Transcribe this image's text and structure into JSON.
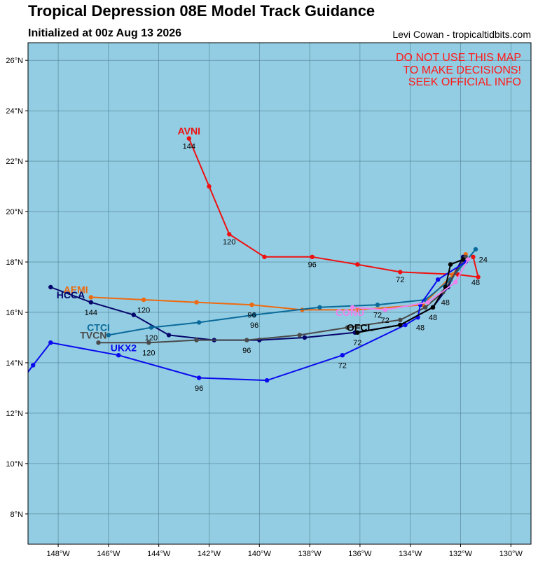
{
  "header": {
    "title": "Tropical Depression 08E Model Track Guidance",
    "subtitle": "Initialized at 00z Aug 13 2026",
    "credit": "Levi Cowan - tropicaltidbits.com"
  },
  "warning": [
    "DO NOT USE THIS MAP",
    "TO MAKE DECISIONS!",
    "SEEK OFFICIAL INFO"
  ],
  "colors": {
    "ocean": "#93cde3",
    "grid": "#4f7f91",
    "warning": "#ff1a1a"
  },
  "map": {
    "lon_range": [
      -149.2,
      -129.2
    ],
    "lat_range": [
      6.8,
      26.7
    ],
    "lon_ticks": [
      {
        "v": -148,
        "label": "148°W"
      },
      {
        "v": -146,
        "label": "146°W"
      },
      {
        "v": -144,
        "label": "144°W"
      },
      {
        "v": -142,
        "label": "142°W"
      },
      {
        "v": -140,
        "label": "140°W"
      },
      {
        "v": -138,
        "label": "138°W"
      },
      {
        "v": -136,
        "label": "136°W"
      },
      {
        "v": -134,
        "label": "134°W"
      },
      {
        "v": -132,
        "label": "132°W"
      },
      {
        "v": -130,
        "label": "130°W"
      }
    ],
    "lat_ticks": [
      {
        "v": 8,
        "label": "8°N"
      },
      {
        "v": 10,
        "label": "10°N"
      },
      {
        "v": 12,
        "label": "12°N"
      },
      {
        "v": 14,
        "label": "14°N"
      },
      {
        "v": 16,
        "label": "16°N"
      },
      {
        "v": 18,
        "label": "18°N"
      },
      {
        "v": 20,
        "label": "20°N"
      },
      {
        "v": 22,
        "label": "22°N"
      },
      {
        "v": 24,
        "label": "24°N"
      },
      {
        "v": 26,
        "label": "26°N"
      }
    ]
  },
  "chart_data": {
    "type": "scatter",
    "xlabel": "",
    "ylabel": "",
    "series": [
      {
        "name": "AVNI",
        "color": "#ee1111",
        "points": [
          [
            -131.5,
            18.2
          ],
          [
            -131.3,
            17.4
          ],
          [
            -132.1,
            17.5
          ],
          [
            -134.4,
            17.6
          ],
          [
            -136.1,
            17.9
          ],
          [
            -137.9,
            18.2
          ],
          [
            -139.8,
            18.2
          ],
          [
            -141.2,
            19.1
          ],
          [
            -142.0,
            21.0
          ],
          [
            -142.8,
            22.9
          ]
        ],
        "hour_labels": [
          {
            "h": "24",
            "lon": -131.1,
            "lat": 18.1
          },
          {
            "h": "48",
            "lon": -131.4,
            "lat": 17.2
          },
          {
            "h": "72",
            "lon": -134.4,
            "lat": 17.3
          },
          {
            "h": "96",
            "lon": -137.9,
            "lat": 17.9
          },
          {
            "h": "120",
            "lon": -141.2,
            "lat": 18.8
          },
          {
            "h": "144",
            "lon": -142.8,
            "lat": 22.6
          }
        ],
        "label": {
          "lon": -142.8,
          "lat": 23.2
        }
      },
      {
        "name": "AEMI",
        "color": "#ee6a10",
        "points": [
          [
            -131.8,
            18.3
          ],
          [
            -132.3,
            17.5
          ],
          [
            -133.5,
            16.3
          ],
          [
            -136.1,
            16.1
          ],
          [
            -138.3,
            16.1
          ],
          [
            -140.3,
            16.3
          ],
          [
            -142.5,
            16.4
          ],
          [
            -144.6,
            16.5
          ],
          [
            -146.7,
            16.6
          ]
        ],
        "hour_labels": [
          {
            "h": "120",
            "lon": -144.6,
            "lat": 16.1
          },
          {
            "h": "96",
            "lon": -140.3,
            "lat": 15.9
          }
        ],
        "label": {
          "lon": -147.3,
          "lat": 16.9
        }
      },
      {
        "name": "HCCA",
        "color": "#05056b",
        "points": [
          [
            -131.9,
            18.2
          ],
          [
            -132.5,
            17.0
          ],
          [
            -133.1,
            16.2
          ],
          [
            -134.4,
            15.5
          ],
          [
            -136.2,
            15.2
          ],
          [
            -138.2,
            15.0
          ],
          [
            -140.0,
            14.9
          ],
          [
            -141.8,
            14.9
          ],
          [
            -143.6,
            15.1
          ],
          [
            -145.0,
            15.9
          ],
          [
            -146.7,
            16.4
          ],
          [
            -148.3,
            17.0
          ]
        ],
        "hour_labels": [
          {
            "h": "144",
            "lon": -146.7,
            "lat": 16.0
          }
        ],
        "label": {
          "lon": -147.5,
          "lat": 16.7
        }
      },
      {
        "name": "CTCI",
        "color": "#0a6a9a",
        "points": [
          [
            -131.4,
            18.5
          ],
          [
            -132.4,
            17.3
          ],
          [
            -133.4,
            16.5
          ],
          [
            -135.3,
            16.3
          ],
          [
            -137.6,
            16.2
          ],
          [
            -140.2,
            15.9
          ],
          [
            -142.4,
            15.6
          ],
          [
            -144.3,
            15.4
          ],
          [
            -146.0,
            15.1
          ]
        ],
        "hour_labels": [
          {
            "h": "120",
            "lon": -144.3,
            "lat": 15.0
          },
          {
            "h": "96",
            "lon": -140.2,
            "lat": 15.5
          },
          {
            "h": "72",
            "lon": -135.3,
            "lat": 15.9
          }
        ],
        "label": {
          "lon": -146.4,
          "lat": 15.4
        }
      },
      {
        "name": "TVCN",
        "color": "#4a4a4a",
        "points": [
          [
            -131.8,
            18.2
          ],
          [
            -132.7,
            16.8
          ],
          [
            -133.4,
            16.2
          ],
          [
            -134.4,
            15.7
          ],
          [
            -136.5,
            15.4
          ],
          [
            -138.4,
            15.1
          ],
          [
            -140.5,
            14.9
          ],
          [
            -142.5,
            14.9
          ],
          [
            -144.4,
            14.8
          ],
          [
            -146.4,
            14.8
          ]
        ],
        "hour_labels": [
          {
            "h": "120",
            "lon": -144.4,
            "lat": 14.4
          },
          {
            "h": "96",
            "lon": -140.5,
            "lat": 14.5
          }
        ],
        "label": {
          "lon": -146.6,
          "lat": 15.1
        }
      },
      {
        "name": "UKX2",
        "color": "#0a0aee",
        "points": [
          [
            -131.8,
            18.0
          ],
          [
            -132.9,
            17.3
          ],
          [
            -133.6,
            16.3
          ],
          [
            -133.7,
            15.8
          ],
          [
            -134.2,
            15.5
          ],
          [
            -136.7,
            14.3
          ],
          [
            -139.7,
            13.3
          ],
          [
            -142.4,
            13.4
          ],
          [
            -145.6,
            14.3
          ],
          [
            -148.3,
            14.8
          ],
          [
            -149.0,
            13.9
          ],
          [
            -149.3,
            13.5
          ]
        ],
        "hour_labels": [
          {
            "h": "48",
            "lon": -133.6,
            "lat": 15.4
          },
          {
            "h": "72",
            "lon": -136.7,
            "lat": 13.9
          },
          {
            "h": "96",
            "lon": -142.4,
            "lat": 13.0
          }
        ],
        "label": {
          "lon": -145.4,
          "lat": 14.6
        }
      },
      {
        "name": "OFCL",
        "color": "#000000",
        "points": [
          [
            -131.9,
            18.1
          ],
          [
            -132.4,
            17.9
          ],
          [
            -132.6,
            17.0
          ],
          [
            -133.1,
            16.2
          ],
          [
            -134.4,
            15.5
          ],
          [
            -136.1,
            15.2
          ]
        ],
        "hour_labels": [
          {
            "h": "48",
            "lon": -133.1,
            "lat": 15.8
          },
          {
            "h": "72",
            "lon": -136.1,
            "lat": 14.8
          }
        ],
        "label": {
          "lon": -136.0,
          "lat": 15.4
        }
      },
      {
        "name": "CONU",
        "color": "#ee82ee",
        "points": [
          [
            -131.7,
            18.1
          ],
          [
            -132.2,
            17.2
          ],
          [
            -133.3,
            16.4
          ],
          [
            -135.0,
            16.1
          ],
          [
            -136.3,
            16.2
          ]
        ],
        "hour_labels": [
          {
            "h": "72",
            "lon": -135.0,
            "lat": 15.7
          },
          {
            "h": "48",
            "lon": -132.6,
            "lat": 16.4
          }
        ],
        "label": {
          "lon": -136.4,
          "lat": 16.0
        }
      }
    ]
  }
}
